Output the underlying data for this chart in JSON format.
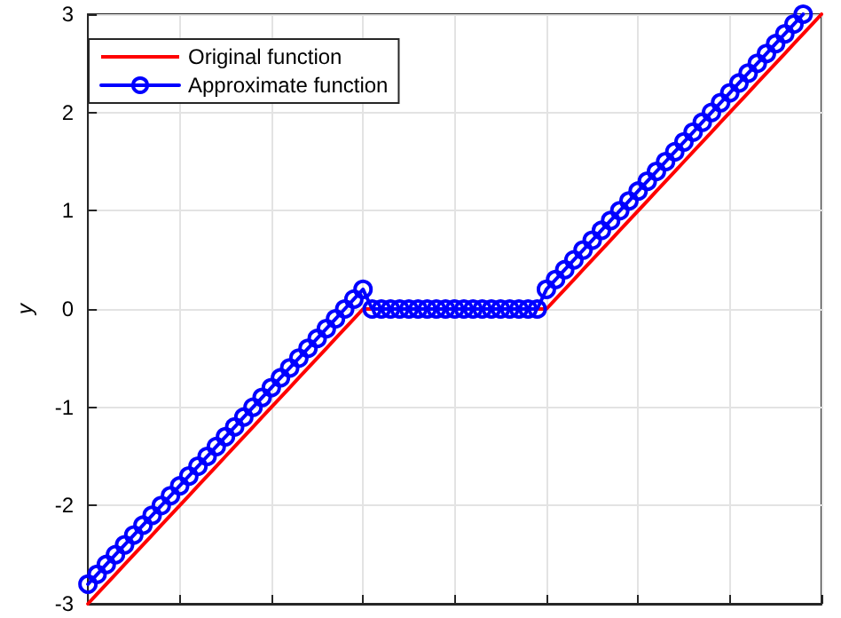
{
  "chart_data": {
    "type": "line",
    "ylabel": "y",
    "categories": [
      null,
      null,
      null,
      null,
      null,
      null,
      null,
      null,
      null,
      null,
      null,
      null,
      null,
      null,
      null,
      null,
      null,
      null,
      null,
      null,
      null,
      null,
      null,
      null,
      null,
      null,
      null,
      null,
      null,
      null,
      null,
      null,
      null,
      null,
      null,
      null,
      null,
      null,
      null,
      null,
      null,
      null,
      null,
      null,
      null,
      null,
      null,
      null,
      null,
      null,
      null,
      null,
      null,
      null,
      null,
      null,
      null,
      null,
      null,
      null,
      null,
      null,
      null,
      null,
      null,
      null,
      null,
      null,
      null,
      null,
      null,
      null,
      null,
      null,
      null,
      null,
      null,
      null,
      null,
      null,
      null
    ],
    "ylim": [
      -3,
      3
    ],
    "yticks": [
      -3,
      -2,
      -1,
      0,
      1,
      2,
      3
    ],
    "grid": true,
    "legend": "top left",
    "tick_labels": "y",
    "series": [
      {
        "name": "Original function",
        "color": "#ff0000",
        "marker": "none",
        "values": [
          -3.0,
          -2.9,
          -2.8,
          -2.7,
          -2.6,
          -2.5,
          -2.4,
          -2.3,
          -2.2,
          -2.1,
          -2.0,
          -1.9,
          -1.8,
          -1.7,
          -1.6,
          -1.5,
          -1.4,
          -1.3,
          -1.2,
          -1.1,
          -1.0,
          -0.9,
          -0.8,
          -0.7,
          -0.6,
          -0.5,
          -0.4,
          -0.3,
          -0.2,
          -0.1,
          0,
          0,
          0,
          0,
          0,
          0,
          0,
          0,
          0,
          0,
          0,
          0,
          0,
          0,
          0,
          0,
          0,
          0,
          0,
          0,
          0,
          0.1,
          0.2,
          0.3,
          0.4,
          0.5,
          0.6,
          0.7,
          0.8,
          0.9,
          1.0,
          1.1,
          1.2,
          1.3,
          1.4,
          1.5,
          1.6,
          1.7,
          1.8,
          1.9,
          2.0,
          2.1,
          2.2,
          2.3,
          2.4,
          2.5,
          2.6,
          2.7,
          2.8,
          2.9,
          3.0
        ]
      },
      {
        "name": "Approximate function",
        "color": "#0000ff",
        "marker": "circle",
        "values": [
          -2.8,
          -2.7,
          -2.6,
          -2.5,
          -2.4,
          -2.3,
          -2.2,
          -2.1,
          -2.0,
          -1.9,
          -1.8,
          -1.7,
          -1.6,
          -1.5,
          -1.4,
          -1.3,
          -1.2,
          -1.1,
          -1.0,
          -0.9,
          -0.8,
          -0.7,
          -0.6,
          -0.5,
          -0.4,
          -0.3,
          -0.2,
          -0.1,
          0.0,
          0.1,
          0.2,
          0,
          0,
          0,
          0,
          0,
          0,
          0,
          0,
          0,
          0,
          0,
          0,
          0,
          0,
          0,
          0,
          0,
          0,
          0,
          0.2,
          0.3,
          0.4,
          0.5,
          0.6,
          0.7,
          0.8,
          0.9,
          1.0,
          1.1,
          1.2,
          1.3,
          1.4,
          1.5,
          1.6,
          1.7,
          1.8,
          1.9,
          2.0,
          2.1,
          2.2,
          2.3,
          2.4,
          2.5,
          2.6,
          2.7,
          2.8,
          2.9,
          3.0,
          null,
          null
        ]
      }
    ]
  }
}
